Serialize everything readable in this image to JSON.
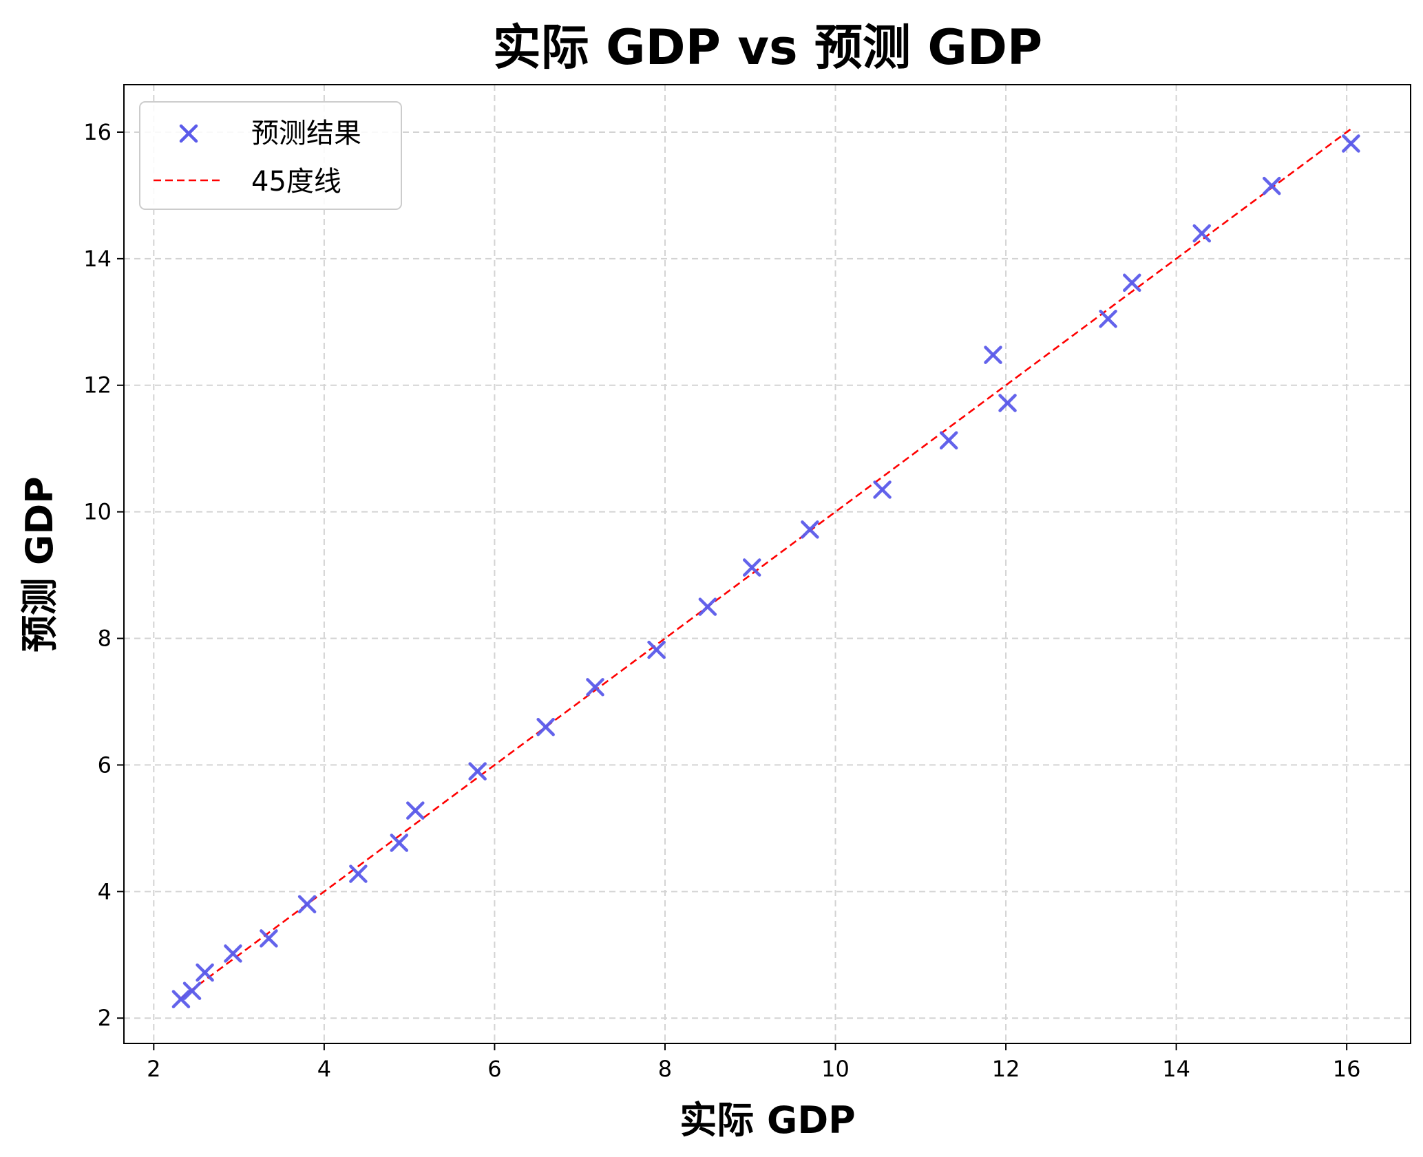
{
  "chart_data": {
    "type": "scatter",
    "title": "实际 GDP vs 预测 GDP",
    "xlabel": "实际 GDP",
    "ylabel": "预测 GDP",
    "xlim": [
      1.65,
      16.75
    ],
    "ylim": [
      1.6,
      16.75
    ],
    "xticks": [
      "2",
      "4",
      "6",
      "8",
      "10",
      "12",
      "14",
      "16"
    ],
    "yticks": [
      "2",
      "4",
      "6",
      "8",
      "10",
      "12",
      "14",
      "16"
    ],
    "grid": true,
    "legend_position": "top-left",
    "series": [
      {
        "name": "预测结果",
        "marker": "x",
        "color": "#5b5bea",
        "points": [
          [
            2.32,
            2.3
          ],
          [
            2.45,
            2.43
          ],
          [
            2.6,
            2.72
          ],
          [
            2.93,
            3.02
          ],
          [
            3.35,
            3.26
          ],
          [
            3.8,
            3.8
          ],
          [
            4.4,
            4.28
          ],
          [
            4.88,
            4.77
          ],
          [
            5.07,
            5.28
          ],
          [
            5.8,
            5.9
          ],
          [
            6.6,
            6.6
          ],
          [
            7.18,
            7.23
          ],
          [
            7.9,
            7.82
          ],
          [
            8.5,
            8.5
          ],
          [
            9.02,
            9.12
          ],
          [
            9.7,
            9.72
          ],
          [
            10.55,
            10.35
          ],
          [
            11.33,
            11.13
          ],
          [
            11.85,
            12.48
          ],
          [
            12.02,
            11.72
          ],
          [
            13.2,
            13.05
          ],
          [
            13.48,
            13.62
          ],
          [
            14.3,
            14.4
          ],
          [
            15.12,
            15.15
          ],
          [
            16.05,
            15.82
          ]
        ]
      },
      {
        "name": "45度线",
        "style": "dashed",
        "color": "#ff0000",
        "points": [
          [
            2.3,
            2.3
          ],
          [
            16.05,
            16.05
          ]
        ]
      }
    ]
  }
}
